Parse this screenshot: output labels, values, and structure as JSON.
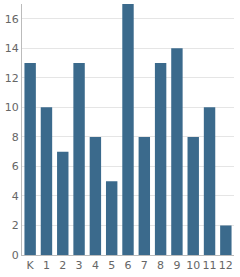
{
  "chart_data": {
    "type": "bar",
    "categories": [
      "K",
      "1",
      "2",
      "3",
      "4",
      "5",
      "6",
      "7",
      "8",
      "9",
      "10",
      "11",
      "12"
    ],
    "values": [
      13,
      10,
      7,
      13,
      8,
      5,
      17,
      8,
      13,
      14,
      8,
      10,
      2
    ],
    "color": "#3b6a8c",
    "ylim": [
      0,
      17
    ],
    "yticks": [
      0,
      2,
      4,
      6,
      8,
      10,
      12,
      14,
      16
    ],
    "grid": true
  }
}
